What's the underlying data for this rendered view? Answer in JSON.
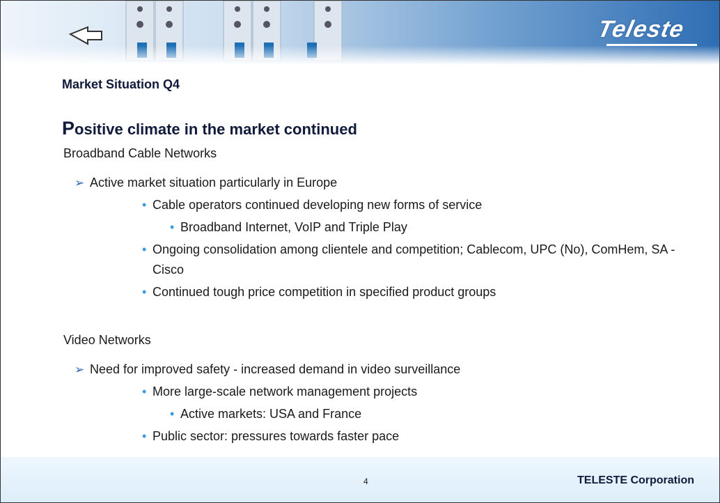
{
  "header": {
    "logo": "Teleste"
  },
  "title": "Market Situation Q4",
  "heading": "Positive climate in the market continued",
  "sections": [
    {
      "title": "Broadband Cable Networks",
      "points": [
        {
          "text": "Active market situation particularly in Europe",
          "points": [
            {
              "text": "Cable operators continued developing new forms of service",
              "points": [
                {
                  "text": "Broadband Internet, VoIP and Triple Play"
                }
              ]
            },
            {
              "text": "Ongoing consolidation among clientele and competition; Cablecom, UPC (No), ComHem, SA - Cisco"
            },
            {
              "text": "Continued tough price competition in specified product groups"
            }
          ]
        }
      ]
    },
    {
      "title": "Video Networks",
      "points": [
        {
          "text": "Need for improved safety - increased demand in video surveillance",
          "points": [
            {
              "text": "More large-scale network management projects",
              "points": [
                {
                  "text": "Active markets: USA and France"
                }
              ]
            },
            {
              "text": "Public sector: pressures towards faster pace"
            }
          ]
        }
      ]
    }
  ],
  "footer": {
    "page": "4",
    "company": "TELESTE Corporation"
  }
}
